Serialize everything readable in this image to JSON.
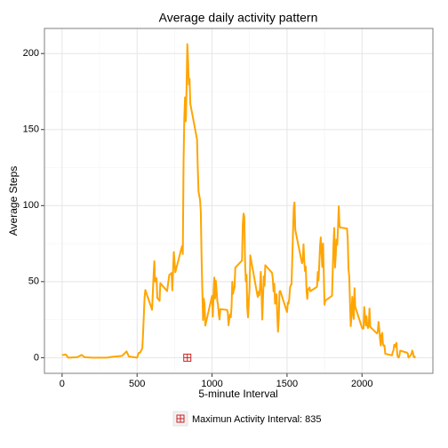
{
  "chart_data": {
    "type": "line",
    "title": "Average daily activity pattern",
    "xlabel": "5-minute Interval",
    "ylabel": "Average Steps",
    "color": "#ffa500",
    "grid": true,
    "xlim": [
      -117.75,
      2472.75
    ],
    "ylim": [
      -10.3,
      216.5
    ],
    "xticks": [
      0,
      500,
      1000,
      1500,
      2000
    ],
    "yticks": [
      0,
      50,
      100,
      150,
      200
    ],
    "highlight": {
      "name": "Maximun Activity Interval: 835",
      "x": 835,
      "y": 0,
      "color": "#cc2222"
    },
    "x": [
      0,
      25,
      40,
      55,
      100,
      130,
      150,
      200,
      230,
      300,
      330,
      400,
      430,
      445,
      500,
      510,
      520,
      535,
      540,
      550,
      555,
      600,
      610,
      615,
      620,
      630,
      635,
      650,
      655,
      700,
      715,
      730,
      735,
      745,
      755,
      800,
      805,
      810,
      815,
      820,
      825,
      830,
      835,
      840,
      845,
      850,
      855,
      900,
      905,
      910,
      920,
      925,
      930,
      935,
      940,
      945,
      950,
      955,
      1000,
      1005,
      1010,
      1015,
      1020,
      1025,
      1030,
      1035,
      1040,
      1045,
      1050,
      1055,
      1100,
      1105,
      1110,
      1115,
      1120,
      1125,
      1130,
      1135,
      1140,
      1145,
      1150,
      1155,
      1200,
      1205,
      1210,
      1215,
      1220,
      1225,
      1230,
      1235,
      1240,
      1245,
      1250,
      1255,
      1300,
      1305,
      1310,
      1315,
      1320,
      1325,
      1330,
      1335,
      1340,
      1345,
      1350,
      1355,
      1400,
      1405,
      1410,
      1415,
      1420,
      1425,
      1430,
      1435,
      1440,
      1445,
      1450,
      1455,
      1500,
      1505,
      1510,
      1515,
      1520,
      1525,
      1530,
      1535,
      1540,
      1545,
      1550,
      1555,
      1600,
      1605,
      1610,
      1615,
      1620,
      1625,
      1630,
      1635,
      1640,
      1645,
      1650,
      1655,
      1700,
      1705,
      1710,
      1715,
      1720,
      1725,
      1730,
      1735,
      1740,
      1745,
      1750,
      1755,
      1800,
      1805,
      1810,
      1815,
      1820,
      1825,
      1830,
      1835,
      1840,
      1845,
      1850,
      1855,
      1900,
      1905,
      1910,
      1915,
      1920,
      1925,
      1930,
      1935,
      1940,
      1945,
      1950,
      1955,
      2000,
      2005,
      2010,
      2015,
      2020,
      2025,
      2030,
      2035,
      2040,
      2045,
      2050,
      2055,
      2100,
      2105,
      2110,
      2115,
      2120,
      2125,
      2130,
      2135,
      2140,
      2145,
      2150,
      2155,
      2200,
      2205,
      2210,
      2215,
      2220,
      2225,
      2230,
      2235,
      2240,
      2245,
      2250,
      2255,
      2300,
      2305,
      2310,
      2315,
      2320,
      2325,
      2330,
      2335,
      2340,
      2345,
      2350,
      2355
    ],
    "values": [
      1.7,
      2.1,
      0,
      0.1,
      0.3,
      1.8,
      0.3,
      0,
      0,
      0,
      0.5,
      1.2,
      4.1,
      0.8,
      0,
      3.0,
      3.3,
      6.1,
      16,
      39.5,
      44.5,
      31.5,
      53.8,
      63.5,
      50,
      52.2,
      39.3,
      37.4,
      49,
      43.8,
      54.5,
      55.7,
      44.3,
      69.5,
      56.2,
      73.4,
      68.2,
      129.4,
      157.5,
      171.2,
      155.4,
      177.3,
      206.2,
      195.9,
      179.6,
      183.4,
      167.0,
      143.5,
      124,
      109.1,
      103.7,
      96,
      66.2,
      45.2,
      24.8,
      38.8,
      35,
      21.1,
      40.6,
      27,
      42.4,
      52.7,
      38.9,
      50.8,
      44.3,
      37.4,
      34.7,
      28.3,
      25.1,
      31.9,
      31.4,
      29.7,
      21.3,
      25.5,
      28.4,
      26.5,
      33.4,
      50,
      42,
      44.6,
      46,
      59.2,
      63.9,
      87.7,
      94.8,
      92.8,
      63.4,
      50.2,
      54.5,
      32.4,
      26.5,
      37.7,
      45.1,
      67.3,
      42.3,
      39.9,
      43.3,
      41,
      46.2,
      56.4,
      42.8,
      25.1,
      40,
      53.5,
      47.3,
      60.8,
      55.8,
      52,
      43.6,
      48.7,
      35.5,
      37.5,
      41.8,
      27.5,
      17.1,
      26.1,
      43.6,
      43.8,
      30,
      36.1,
      35.5,
      38.8,
      46,
      47.8,
      48.1,
      65.3,
      82.9,
      98.7,
      102.1,
      84,
      62.1,
      64.1,
      74.5,
      63.2,
      56.9,
      59.8,
      43.9,
      38.6,
      44.7,
      45.5,
      46.2,
      43.7,
      46.6,
      56.3,
      50.7,
      61.2,
      73.4,
      79.1,
      68.9,
      59.7,
      75.1,
      56.5,
      34.8,
      37.5,
      40.7,
      58,
      74.7,
      85.3,
      59.3,
      67.8,
      77.7,
      74.2,
      85.3,
      99.5,
      86.6,
      85.6,
      84.9,
      77.8,
      58,
      53.4,
      36.3,
      20.7,
      27.4,
      40,
      30.2,
      25.5,
      45.7,
      33.5,
      19.6,
      19,
      19.3,
      33.3,
      26.8,
      21.2,
      27.3,
      21.3,
      19.5,
      21.3,
      32.3,
      20.2,
      15.9,
      17.2,
      23.5,
      19.2,
      12.5,
      8,
      14.7,
      16.3,
      8.7,
      7.8,
      8.1,
      2.6,
      1.5,
      3.7,
      4.8,
      8.5,
      7.1,
      8.7,
      9.8,
      2.2,
      0.3,
      0.1,
      1.6,
      4.6,
      3.3,
      2.8,
      0,
      0.8,
      1,
      1.6,
      2.6,
      4.7,
      3.3,
      0.6,
      0.2,
      1.1
    ]
  }
}
